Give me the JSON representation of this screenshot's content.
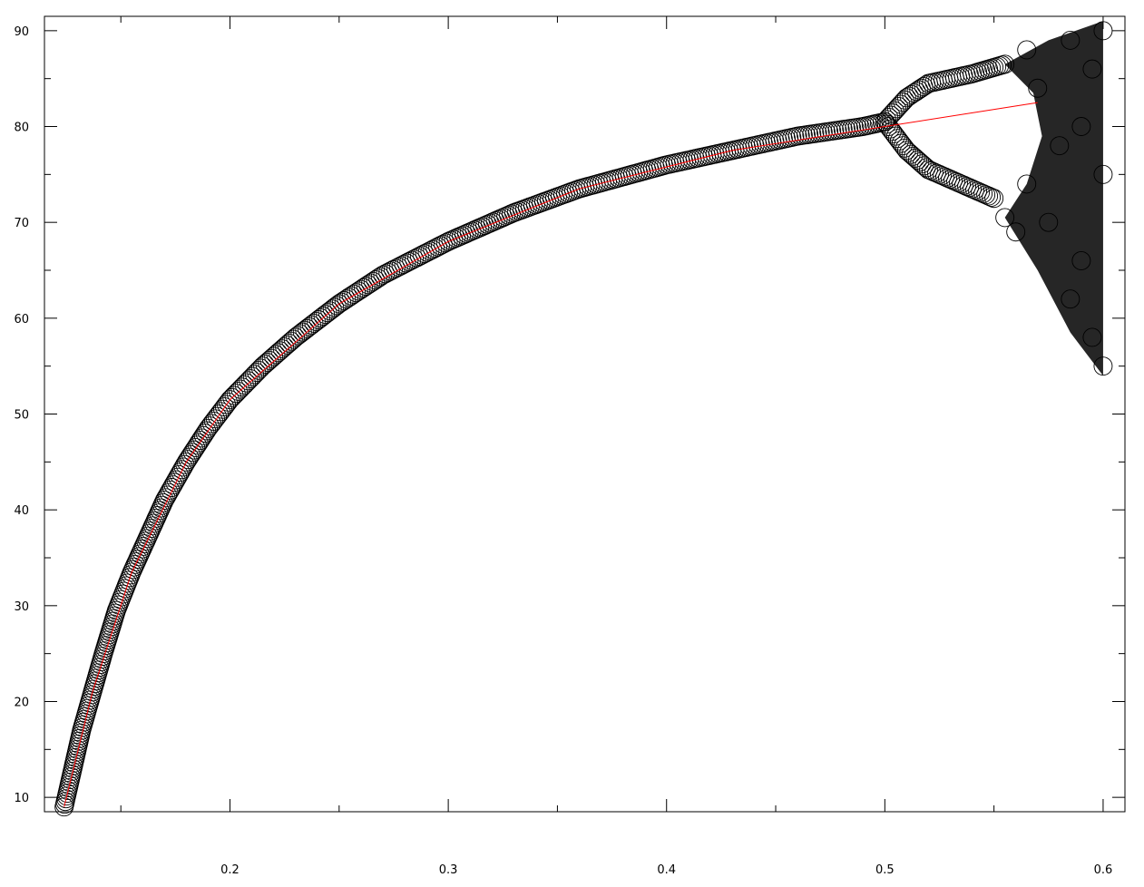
{
  "chart_data": {
    "type": "scatter",
    "title": "",
    "xlabel": "",
    "ylabel": "",
    "xlim": [
      0.115,
      0.61
    ],
    "ylim": [
      8.5,
      91.5
    ],
    "grid": false,
    "legend": "none",
    "x_ticks": [
      0.2,
      0.3,
      0.4,
      0.5,
      0.6
    ],
    "x_tick_labels": [
      "0.2",
      "0.3",
      "0.4",
      "0.5",
      "0.6"
    ],
    "y_ticks": [
      10,
      20,
      30,
      40,
      50,
      60,
      70,
      80,
      90
    ],
    "y_tick_labels": [
      "10",
      "20",
      "30",
      "40",
      "50",
      "60",
      "70",
      "80",
      "90"
    ],
    "x_minor_step": 0.05,
    "y_minor_step": 5,
    "colors": {
      "markers": "#000000",
      "trend_line": "#ff0000",
      "axes": "#000000"
    },
    "series": [
      {
        "marker": "open-circle",
        "points": [
          [
            0.124,
            9.0
          ],
          [
            0.128,
            13.0
          ],
          [
            0.132,
            17.0
          ],
          [
            0.137,
            21.0
          ],
          [
            0.142,
            25.0
          ],
          [
            0.148,
            29.5
          ],
          [
            0.155,
            33.5
          ],
          [
            0.162,
            37.0
          ],
          [
            0.17,
            41.0
          ],
          [
            0.18,
            45.0
          ],
          [
            0.19,
            48.5
          ],
          [
            0.2,
            51.5
          ],
          [
            0.215,
            55.0
          ],
          [
            0.23,
            58.0
          ],
          [
            0.25,
            61.5
          ],
          [
            0.27,
            64.5
          ],
          [
            0.3,
            68.0
          ],
          [
            0.33,
            71.0
          ],
          [
            0.36,
            73.5
          ],
          [
            0.4,
            76.0
          ],
          [
            0.43,
            77.5
          ],
          [
            0.46,
            79.0
          ],
          [
            0.49,
            80.0
          ],
          [
            0.5,
            80.5
          ],
          [
            0.51,
            83.0
          ],
          [
            0.52,
            84.5
          ],
          [
            0.54,
            85.5
          ],
          [
            0.555,
            86.5
          ],
          [
            0.51,
            77.5
          ],
          [
            0.52,
            75.5
          ],
          [
            0.54,
            73.5
          ],
          [
            0.55,
            72.5
          ],
          [
            0.555,
            70.5
          ],
          [
            0.56,
            69.0
          ],
          [
            0.565,
            74.0
          ],
          [
            0.565,
            88.0
          ],
          [
            0.57,
            84.0
          ],
          [
            0.575,
            70.0
          ],
          [
            0.58,
            78.0
          ],
          [
            0.585,
            89.0
          ],
          [
            0.585,
            62.0
          ],
          [
            0.59,
            80.0
          ],
          [
            0.59,
            66.0
          ],
          [
            0.595,
            86.0
          ],
          [
            0.595,
            58.0
          ],
          [
            0.6,
            90.0
          ],
          [
            0.6,
            75.0
          ],
          [
            0.6,
            55.0
          ]
        ]
      },
      {
        "marker": "line",
        "points": [
          [
            0.124,
            9.0
          ],
          [
            0.137,
            21.0
          ],
          [
            0.155,
            33.5
          ],
          [
            0.18,
            45.0
          ],
          [
            0.2,
            51.5
          ],
          [
            0.25,
            61.5
          ],
          [
            0.3,
            68.0
          ],
          [
            0.36,
            73.5
          ],
          [
            0.43,
            77.5
          ],
          [
            0.5,
            80.0
          ],
          [
            0.57,
            82.5
          ]
        ]
      }
    ],
    "regions": [
      {
        "fill": "#000000",
        "boundary": [
          [
            0.555,
            86.5
          ],
          [
            0.575,
            89.0
          ],
          [
            0.6,
            91.0
          ],
          [
            0.6,
            54.0
          ],
          [
            0.585,
            58.5
          ],
          [
            0.57,
            65.0
          ],
          [
            0.555,
            70.5
          ],
          [
            0.565,
            74.0
          ],
          [
            0.572,
            79.0
          ],
          [
            0.568,
            83.5
          ]
        ]
      }
    ]
  }
}
